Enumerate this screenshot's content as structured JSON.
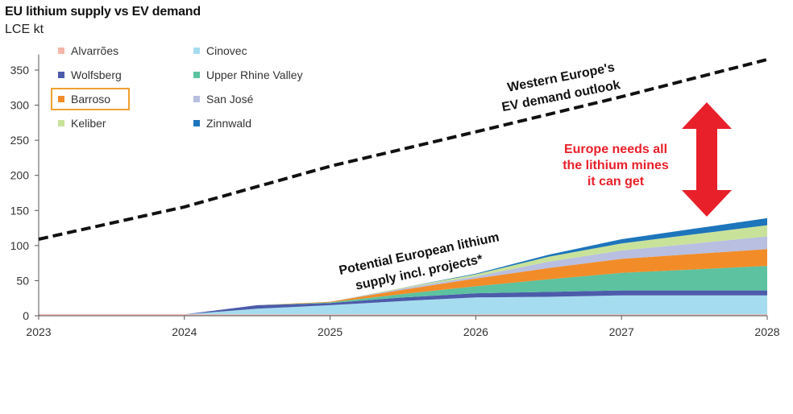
{
  "header": {
    "title": "EU lithium supply vs EV demand",
    "unit": "LCE kt"
  },
  "annotations": {
    "demand_line_1": "Western Europe's",
    "demand_line_2": "EV demand outlook",
    "supply_line_1": "Potential European lithium",
    "supply_line_2": "supply incl. projects*",
    "gap_line_1": "Europe needs all",
    "gap_line_2": "the lithium mines",
    "gap_line_3": "it can get"
  },
  "colors": {
    "demand_line": "#111111",
    "gap_arrow": "#e8202a",
    "highlight_box": "#f0a030"
  },
  "chart_data": {
    "type": "area",
    "stacked": true,
    "title": "EU lithium supply vs EV demand",
    "ylabel": "LCE kt",
    "xlabel": "",
    "xlim": [
      2023,
      2028
    ],
    "ylim": [
      0,
      370
    ],
    "yticks": [
      0,
      50,
      100,
      150,
      200,
      250,
      300,
      350
    ],
    "xticks": [
      2023,
      2024,
      2025,
      2026,
      2027,
      2028
    ],
    "grid": false,
    "legend_position": "top-left",
    "x": [
      2023,
      2023.5,
      2024,
      2024.5,
      2025,
      2025.5,
      2026,
      2026.5,
      2027,
      2027.5,
      2028
    ],
    "series": [
      {
        "name": "Alvarrões",
        "color": "#f4b5aa",
        "values": [
          2,
          2,
          2,
          2,
          2,
          2,
          2,
          2,
          2,
          2,
          2
        ]
      },
      {
        "name": "Cinovec",
        "color": "#a6dcef",
        "values": [
          0,
          0,
          0,
          8,
          13,
          19,
          24,
          25,
          27,
          27,
          27
        ]
      },
      {
        "name": "Wolfsberg",
        "color": "#4c5baa",
        "values": [
          0,
          0,
          0,
          5,
          3,
          5,
          6,
          7,
          7,
          7,
          7
        ]
      },
      {
        "name": "Upper Rhine Valley",
        "color": "#5cc2a0",
        "values": [
          0,
          0,
          0,
          0,
          1,
          5,
          10,
          18,
          25,
          30,
          35
        ]
      },
      {
        "name": "Barroso",
        "color": "#f28c28",
        "values": [
          0,
          0,
          0,
          0,
          1,
          6,
          11,
          16,
          20,
          22,
          24
        ]
      },
      {
        "name": "San José",
        "color": "#b8bfe0",
        "values": [
          0,
          0,
          0,
          0,
          0,
          2,
          3,
          9,
          12,
          15,
          18
        ]
      },
      {
        "name": "Keliber",
        "color": "#c9e29a",
        "values": [
          0,
          0,
          0,
          0,
          0,
          1,
          3,
          7,
          10,
          13,
          16
        ]
      },
      {
        "name": "Zinnwald",
        "color": "#1d75bb",
        "values": [
          0,
          0,
          0,
          0,
          0,
          0,
          1,
          3,
          6,
          8,
          10
        ]
      }
    ],
    "legend_highlight": "Barroso",
    "line": {
      "name": "Western Europe's EV demand outlook",
      "style": "dashed",
      "x": [
        2023,
        2024,
        2025,
        2026,
        2027,
        2028
      ],
      "values": [
        109,
        155,
        213,
        262,
        312,
        365
      ]
    }
  }
}
